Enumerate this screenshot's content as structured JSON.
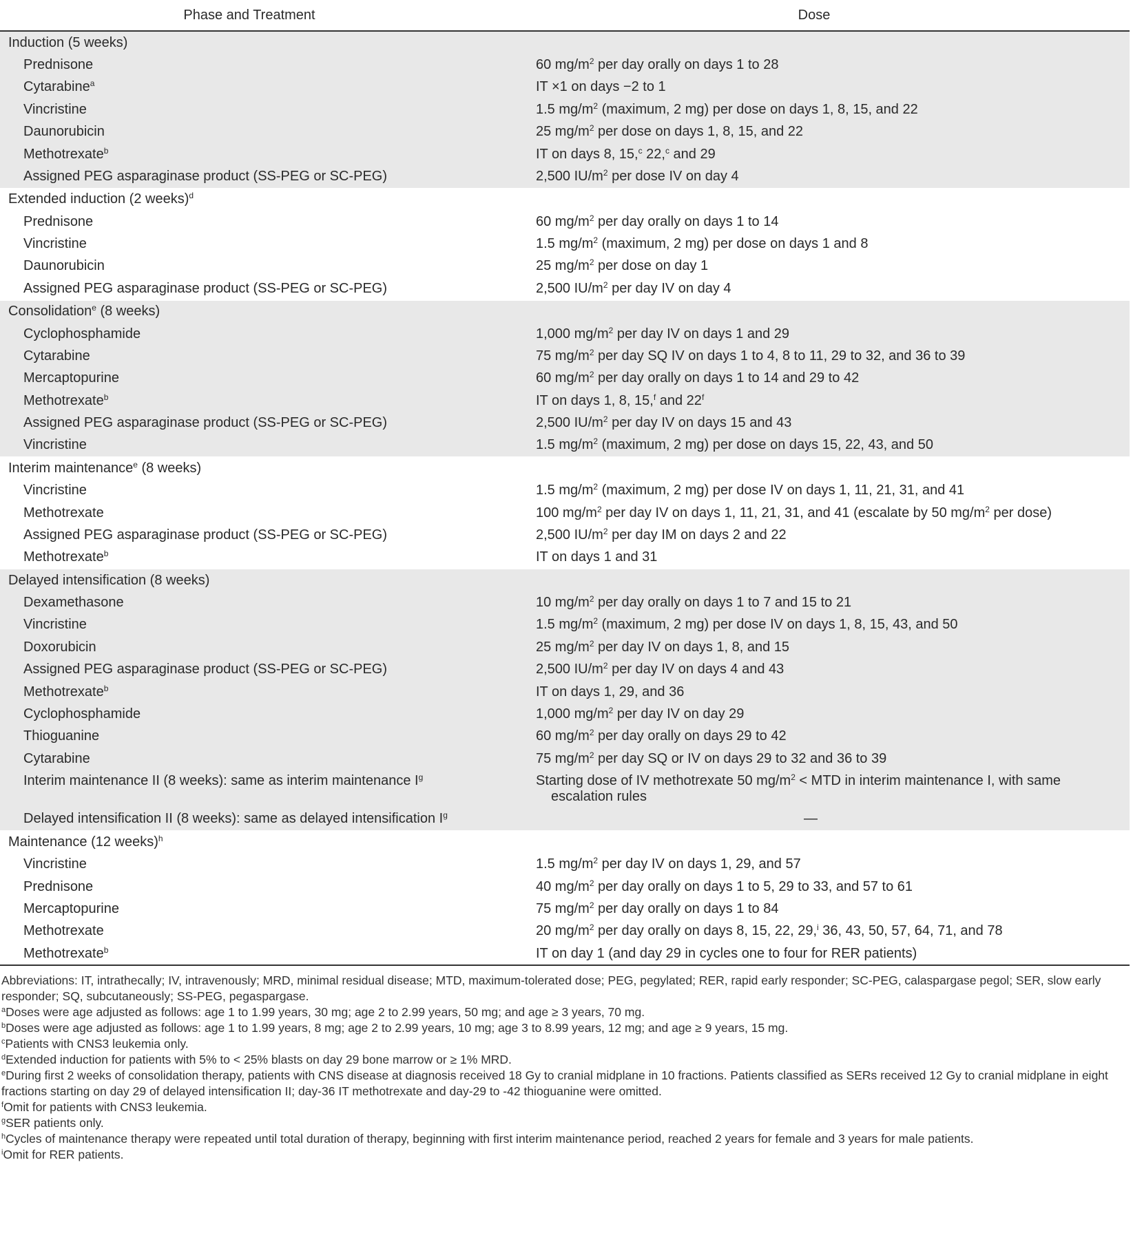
{
  "header": {
    "col1": "Phase and Treatment",
    "col2": "Dose"
  },
  "colors": {
    "band": "#e8e8e8",
    "rule": "#333333"
  },
  "groups": [
    {
      "shade": "gray",
      "title": [
        "Induction (5 weeks)"
      ],
      "rows": [
        {
          "name": [
            "Prednisone"
          ],
          "dose": [
            "60 mg/m",
            {
              "sup": "2"
            },
            " per day orally on days 1 to 28"
          ]
        },
        {
          "name": [
            "Cytarabine",
            {
              "sup": "a"
            }
          ],
          "dose": [
            "IT ×1 on days −2 to 1"
          ]
        },
        {
          "name": [
            "Vincristine"
          ],
          "dose": [
            "1.5 mg/m",
            {
              "sup": "2"
            },
            " (maximum, 2 mg) per dose on days 1, 8, 15, and 22"
          ]
        },
        {
          "name": [
            "Daunorubicin"
          ],
          "dose": [
            "25 mg/m",
            {
              "sup": "2"
            },
            " per dose on days 1, 8, 15, and 22"
          ]
        },
        {
          "name": [
            "Methotrexate",
            {
              "sup": "b"
            }
          ],
          "dose": [
            "IT on days 8, 15,",
            {
              "sup": "c"
            },
            " 22,",
            {
              "sup": "c"
            },
            " and 29"
          ]
        },
        {
          "name": [
            "Assigned PEG asparaginase product (SS-PEG or SC-PEG)"
          ],
          "dose": [
            "2,500 IU/m",
            {
              "sup": "2"
            },
            " per dose IV on day 4"
          ]
        }
      ]
    },
    {
      "shade": "white",
      "title": [
        "Extended induction (2 weeks)",
        {
          "sup": "d"
        }
      ],
      "rows": [
        {
          "name": [
            "Prednisone"
          ],
          "dose": [
            "60 mg/m",
            {
              "sup": "2"
            },
            " per day orally on days 1 to 14"
          ]
        },
        {
          "name": [
            "Vincristine"
          ],
          "dose": [
            "1.5 mg/m",
            {
              "sup": "2"
            },
            " (maximum, 2 mg) per dose on days 1 and 8"
          ]
        },
        {
          "name": [
            "Daunorubicin"
          ],
          "dose": [
            "25 mg/m",
            {
              "sup": "2"
            },
            " per dose on day 1"
          ]
        },
        {
          "name": [
            "Assigned PEG asparaginase product (SS-PEG or SC-PEG)"
          ],
          "dose": [
            "2,500 IU/m",
            {
              "sup": "2"
            },
            " per day IV on day 4"
          ]
        }
      ]
    },
    {
      "shade": "gray",
      "title": [
        "Consolidation",
        {
          "sup": "e"
        },
        " (8 weeks)"
      ],
      "rows": [
        {
          "name": [
            "Cyclophosphamide"
          ],
          "dose": [
            "1,000 mg/m",
            {
              "sup": "2"
            },
            " per day IV on days 1 and 29"
          ]
        },
        {
          "name": [
            "Cytarabine"
          ],
          "dose": [
            "75 mg/m",
            {
              "sup": "2"
            },
            " per day SQ IV on days 1 to 4, 8 to 11, 29 to 32, and 36 to 39"
          ]
        },
        {
          "name": [
            "Mercaptopurine"
          ],
          "dose": [
            "60 mg/m",
            {
              "sup": "2"
            },
            " per day orally on days 1 to 14 and 29 to 42"
          ]
        },
        {
          "name": [
            "Methotrexate",
            {
              "sup": "b"
            }
          ],
          "dose": [
            "IT on days 1, 8, 15,",
            {
              "sup": "f"
            },
            " and 22",
            {
              "sup": "f"
            }
          ]
        },
        {
          "name": [
            "Assigned PEG asparaginase product (SS-PEG or SC-PEG)"
          ],
          "dose": [
            "2,500 IU/m",
            {
              "sup": "2"
            },
            " per day IV on days 15 and 43"
          ]
        },
        {
          "name": [
            "Vincristine"
          ],
          "dose": [
            "1.5 mg/m",
            {
              "sup": "2"
            },
            " (maximum, 2 mg) per dose on days 15, 22, 43, and 50"
          ]
        }
      ]
    },
    {
      "shade": "white",
      "title": [
        "Interim maintenance",
        {
          "sup": "e"
        },
        " (8 weeks)"
      ],
      "rows": [
        {
          "name": [
            "Vincristine"
          ],
          "dose": [
            "1.5 mg/m",
            {
              "sup": "2"
            },
            " (maximum, 2 mg) per dose IV on days 1, 11, 21, 31, and 41"
          ]
        },
        {
          "name": [
            "Methotrexate"
          ],
          "dose": [
            "100 mg/m",
            {
              "sup": "2"
            },
            " per day IV on days 1, 11, 21, 31, and 41 (escalate by 50 mg/m",
            {
              "sup": "2"
            },
            " per dose)"
          ]
        },
        {
          "name": [
            "Assigned PEG asparaginase product (SS-PEG or SC-PEG)"
          ],
          "dose": [
            "2,500 IU/m",
            {
              "sup": "2"
            },
            " per day IM on days 2 and 22"
          ]
        },
        {
          "name": [
            "Methotrexate",
            {
              "sup": "b"
            }
          ],
          "dose": [
            "IT on days 1 and 31"
          ]
        }
      ]
    },
    {
      "shade": "gray",
      "title": [
        "Delayed intensification (8 weeks)"
      ],
      "rows": [
        {
          "name": [
            "Dexamethasone"
          ],
          "dose": [
            "10 mg/m",
            {
              "sup": "2"
            },
            " per day orally on days 1 to 7 and 15 to 21"
          ]
        },
        {
          "name": [
            "Vincristine"
          ],
          "dose": [
            "1.5 mg/m",
            {
              "sup": "2"
            },
            " (maximum, 2 mg) per dose IV on days 1, 8, 15, 43, and 50"
          ]
        },
        {
          "name": [
            "Doxorubicin"
          ],
          "dose": [
            "25 mg/m",
            {
              "sup": "2"
            },
            " per day IV on days 1, 8, and 15"
          ]
        },
        {
          "name": [
            "Assigned PEG asparaginase product (SS-PEG or SC-PEG)"
          ],
          "dose": [
            "2,500 IU/m",
            {
              "sup": "2"
            },
            " per day IV on days 4 and 43"
          ]
        },
        {
          "name": [
            "Methotrexate",
            {
              "sup": "b"
            }
          ],
          "dose": [
            "IT on days 1, 29, and 36"
          ]
        },
        {
          "name": [
            "Cyclophosphamide"
          ],
          "dose": [
            "1,000 mg/m",
            {
              "sup": "2"
            },
            " per day IV on day 29"
          ]
        },
        {
          "name": [
            "Thioguanine"
          ],
          "dose": [
            "60 mg/m",
            {
              "sup": "2"
            },
            " per day orally on days 29 to 42"
          ]
        },
        {
          "name": [
            "Cytarabine"
          ],
          "dose": [
            "75 mg/m",
            {
              "sup": "2"
            },
            " per day SQ or IV on days 29 to 32 and 36 to 39"
          ]
        },
        {
          "name": [
            "Interim maintenance II (8 weeks): same as interim maintenance I",
            {
              "sup": "g"
            }
          ],
          "dose": [
            "Starting dose of IV methotrexate 50 mg/m",
            {
              "sup": "2"
            },
            " < MTD in interim maintenance I, with same escalation rules"
          ]
        },
        {
          "name": [
            "Delayed intensification II (8 weeks): same as delayed intensification I",
            {
              "sup": "g"
            }
          ],
          "dose": [
            "—"
          ],
          "center": true
        }
      ]
    },
    {
      "shade": "white",
      "title": [
        "Maintenance (12 weeks)",
        {
          "sup": "h"
        }
      ],
      "rows": [
        {
          "name": [
            "Vincristine"
          ],
          "dose": [
            "1.5 mg/m",
            {
              "sup": "2"
            },
            " per day IV on days 1, 29, and 57"
          ]
        },
        {
          "name": [
            "Prednisone"
          ],
          "dose": [
            "40 mg/m",
            {
              "sup": "2"
            },
            " per day orally on days 1 to 5, 29 to 33, and 57 to 61"
          ]
        },
        {
          "name": [
            "Mercaptopurine"
          ],
          "dose": [
            "75 mg/m",
            {
              "sup": "2"
            },
            " per day orally on days 1 to 84"
          ]
        },
        {
          "name": [
            "Methotrexate"
          ],
          "dose": [
            "20 mg/m",
            {
              "sup": "2"
            },
            " per day orally on days 8, 15, 22, 29,",
            {
              "sup": "i"
            },
            " 36, 43, 50, 57, 64, 71, and 78"
          ]
        },
        {
          "name": [
            "Methotrexate",
            {
              "sup": "b"
            }
          ],
          "dose": [
            "IT on day 1 (and day 29 in cycles one to four for RER patients)"
          ]
        }
      ]
    }
  ],
  "footnotes": [
    [
      "Abbreviations: IT, intrathecally; IV, intravenously; MRD, minimal residual disease; MTD, maximum-tolerated dose; PEG, pegylated; RER, rapid early responder; SC-PEG, calaspargase pegol; SER, slow early responder; SQ, subcutaneously; SS-PEG, pegaspargase."
    ],
    [
      {
        "sup": "a"
      },
      "Doses were age adjusted as follows: age 1 to 1.99 years, 30 mg; age 2 to 2.99 years, 50 mg; and age ≥ 3 years, 70 mg."
    ],
    [
      {
        "sup": "b"
      },
      "Doses were age adjusted as follows: age 1 to 1.99 years, 8 mg; age 2 to 2.99 years, 10 mg; age 3 to 8.99 years, 12 mg; and age ≥ 9 years, 15 mg."
    ],
    [
      {
        "sup": "c"
      },
      "Patients with CNS3 leukemia only."
    ],
    [
      {
        "sup": "d"
      },
      "Extended induction for patients with 5% to < 25% blasts on day 29 bone marrow or ≥ 1% MRD."
    ],
    [
      {
        "sup": "e"
      },
      "During first 2 weeks of consolidation therapy, patients with CNS disease at diagnosis received 18 Gy to cranial midplane in 10 fractions. Patients classified as SERs received 12 Gy to cranial midplane in eight fractions starting on day 29 of delayed intensification II; day-36 IT methotrexate and day-29 to -42 thioguanine were omitted."
    ],
    [
      {
        "sup": "f"
      },
      "Omit for patients with CNS3 leukemia."
    ],
    [
      {
        "sup": "g"
      },
      "SER patients only."
    ],
    [
      {
        "sup": "h"
      },
      "Cycles of maintenance therapy were repeated until total duration of therapy, beginning with first interim maintenance period, reached 2 years for female and 3 years for male patients."
    ],
    [
      {
        "sup": "i"
      },
      "Omit for RER patients."
    ]
  ]
}
